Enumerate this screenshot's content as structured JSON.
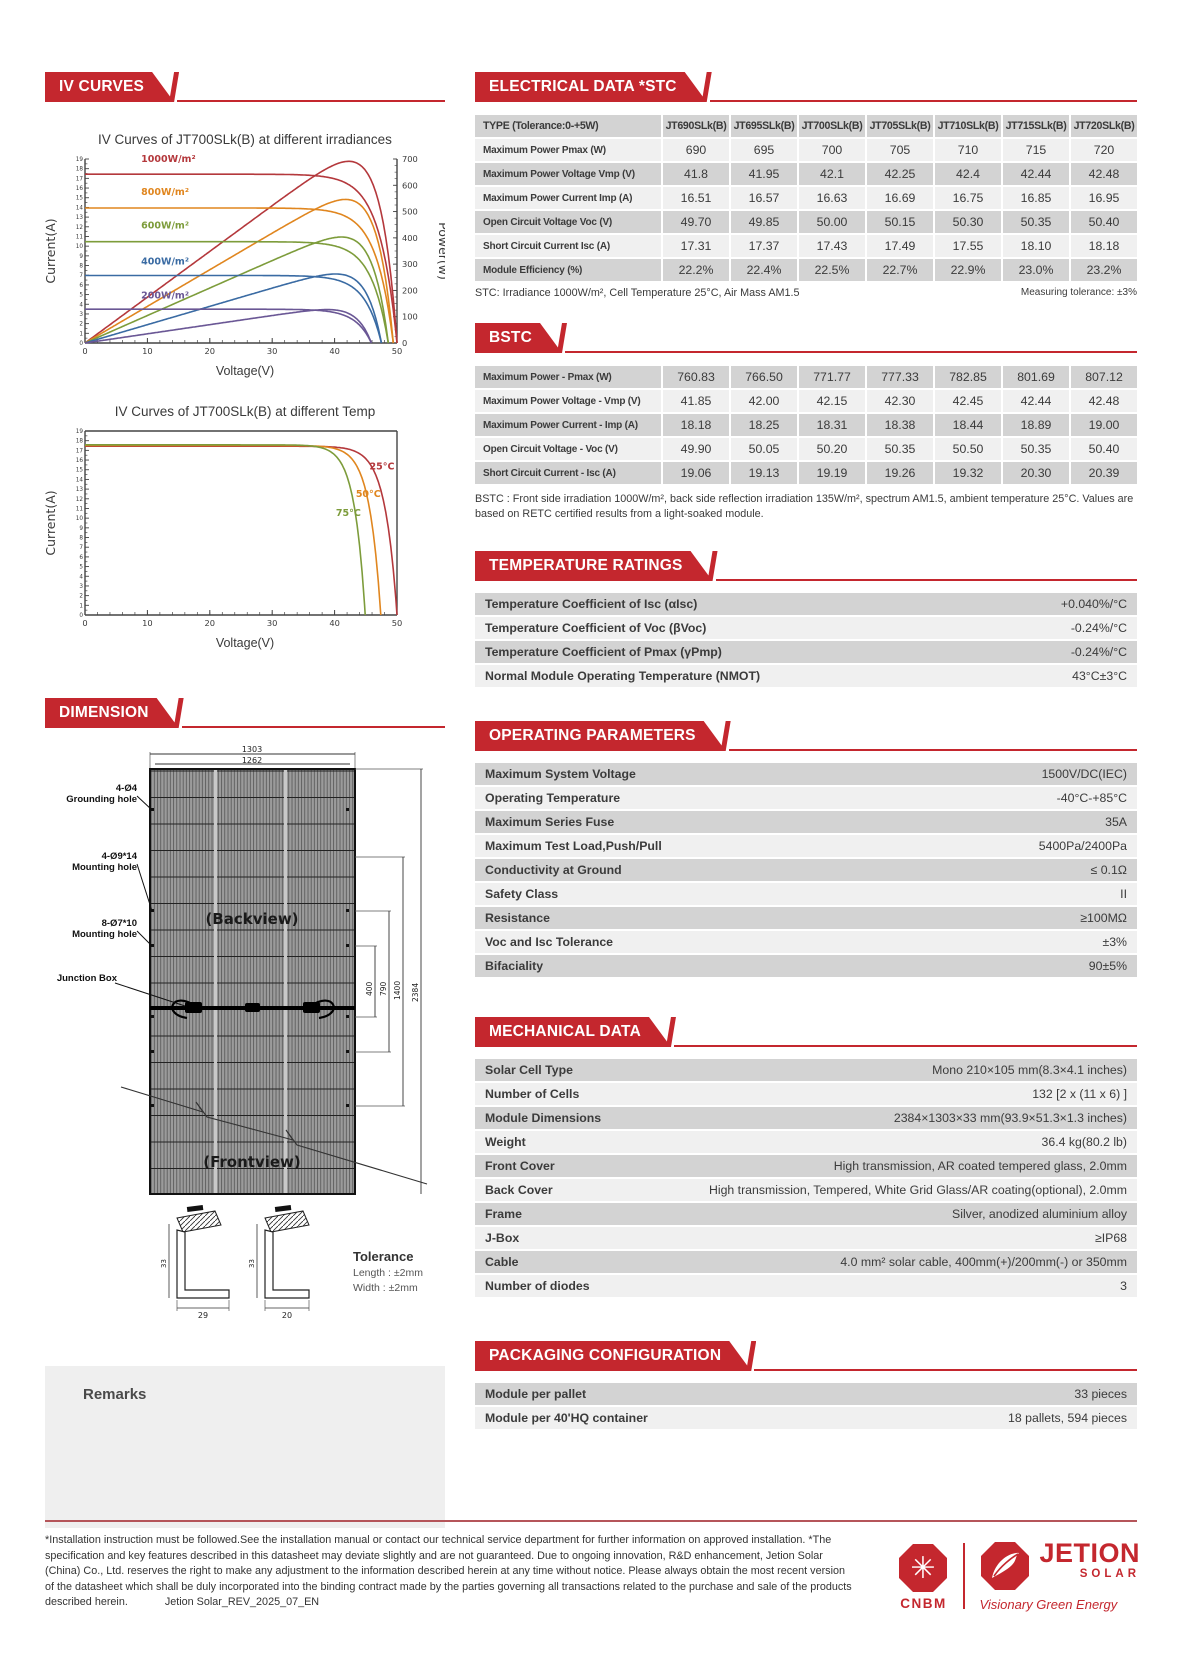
{
  "left": {
    "iv_banner": "IV CURVES",
    "dimension_banner": "DIMENSION",
    "remarks_label": "Remarks",
    "dimension": {
      "grounding_hole": "4-Ø4\nGrounding hole",
      "mounting_hole_1": "4-Ø9*14\nMounting hole",
      "mounting_hole_2": "8-Ø7*10\nMounting hole",
      "junction_box": "Junction Box",
      "backview": "(Backview)",
      "frontview": "(Frontview)",
      "dims": {
        "width_outer": "1303",
        "width_inner": "1262",
        "h400": "400",
        "h790": "790",
        "h1400": "1400",
        "h2384": "2384",
        "frame_h1": "33",
        "frame_h2": "33",
        "frame_w1": "29",
        "frame_w2": "20"
      },
      "tolerance": {
        "title": "Tolerance",
        "length": "Length :  ±2mm",
        "width": "Width :  ±2mm"
      }
    }
  },
  "chart_data": [
    {
      "type": "line",
      "title": "IV Curves of JT700SLk(B) at different irradiances",
      "xlabel": "Voltage(V)",
      "ylabel": "Current(A)",
      "y2label": "Power(w)",
      "xlim": [
        0,
        50
      ],
      "ylim": [
        0,
        19
      ],
      "y2lim": [
        0,
        700
      ],
      "grid": false,
      "legend_position": "in-plot-left",
      "series": [
        {
          "name": "1000W/m²",
          "color": "#b4383c",
          "isc": 17.43,
          "voc": 50.0,
          "vmp": 42.1,
          "imp": 16.63,
          "pmax": 700,
          "label_at": [
            9,
            18.7
          ]
        },
        {
          "name": "800W/m²",
          "color": "#e0861f",
          "isc": 13.94,
          "voc": 49.4,
          "vmp": 41.9,
          "imp": 13.3,
          "pmax": 557,
          "label_at": [
            9,
            15.3
          ]
        },
        {
          "name": "600W/m²",
          "color": "#7d9c3b",
          "isc": 10.46,
          "voc": 48.6,
          "vmp": 41.5,
          "imp": 10.0,
          "pmax": 415,
          "label_at": [
            9,
            11.8
          ]
        },
        {
          "name": "400W/m²",
          "color": "#3a6ba3",
          "isc": 6.97,
          "voc": 47.5,
          "vmp": 41.0,
          "imp": 6.65,
          "pmax": 273,
          "label_at": [
            9,
            8.1
          ]
        },
        {
          "name": "200W/m²",
          "color": "#6a5795",
          "isc": 3.49,
          "voc": 45.9,
          "vmp": 40.2,
          "imp": 3.3,
          "pmax": 133,
          "label_at": [
            9,
            4.6
          ]
        }
      ]
    },
    {
      "type": "line",
      "title": "IV Curves of JT700SLk(B) at different Temp",
      "xlabel": "Voltage(V)",
      "ylabel": "Current(A)",
      "xlim": [
        0,
        50
      ],
      "ylim": [
        0,
        19
      ],
      "grid": false,
      "legend_position": "in-plot-right",
      "series": [
        {
          "name": "25°C",
          "color": "#b4383c",
          "isc": 17.43,
          "voc": 50.0,
          "label_at": [
            45.6,
            15.0
          ]
        },
        {
          "name": "50°C",
          "color": "#e0861f",
          "isc": 17.5,
          "voc": 47.4,
          "label_at": [
            43.4,
            12.2
          ]
        },
        {
          "name": "75°C",
          "color": "#7d9c3b",
          "isc": 17.57,
          "voc": 44.9,
          "label_at": [
            40.2,
            10.2
          ]
        }
      ]
    }
  ],
  "right": {
    "stc": {
      "banner": "ELECTRICAL DATA *STC",
      "columns": [
        "TYPE (Tolerance:0-+5W)",
        "JT690SLk(B)",
        "JT695SLk(B)",
        "JT700SLk(B)",
        "JT705SLk(B)",
        "JT710SLk(B)",
        "JT715SLk(B)",
        "JT720SLk(B)"
      ],
      "rows": [
        {
          "label": "Maximum Power Pmax (W)",
          "values": [
            "690",
            "695",
            "700",
            "705",
            "710",
            "715",
            "720"
          ]
        },
        {
          "label": "Maximum Power Voltage Vmp (V)",
          "values": [
            "41.8",
            "41.95",
            "42.1",
            "42.25",
            "42.4",
            "42.44",
            "42.48"
          ]
        },
        {
          "label": "Maximum Power Current Imp (A)",
          "values": [
            "16.51",
            "16.57",
            "16.63",
            "16.69",
            "16.75",
            "16.85",
            "16.95"
          ]
        },
        {
          "label": "Open Circuit Voltage Voc (V)",
          "values": [
            "49.70",
            "49.85",
            "50.00",
            "50.15",
            "50.30",
            "50.35",
            "50.40"
          ]
        },
        {
          "label": "Short Circuit Current Isc (A)",
          "values": [
            "17.31",
            "17.37",
            "17.43",
            "17.49",
            "17.55",
            "18.10",
            "18.18"
          ]
        },
        {
          "label": "Module Efficiency (%)",
          "values": [
            "22.2%",
            "22.4%",
            "22.5%",
            "22.7%",
            "22.9%",
            "23.0%",
            "23.2%"
          ]
        }
      ],
      "note_left": "STC: Irradiance 1000W/m², Cell Temperature 25°C, Air Mass AM1.5",
      "note_right": "Measuring tolerance: ±3%"
    },
    "bstc": {
      "banner": "BSTC",
      "rows": [
        {
          "label": "Maximum Power - Pmax (W)",
          "values": [
            "760.83",
            "766.50",
            "771.77",
            "777.33",
            "782.85",
            "801.69",
            "807.12"
          ]
        },
        {
          "label": "Maximum Power Voltage - Vmp (V)",
          "values": [
            "41.85",
            "42.00",
            "42.15",
            "42.30",
            "42.45",
            "42.44",
            "42.48"
          ]
        },
        {
          "label": "Maximum Power Current - Imp (A)",
          "values": [
            "18.18",
            "18.25",
            "18.31",
            "18.38",
            "18.44",
            "18.89",
            "19.00"
          ]
        },
        {
          "label": "Open Circuit Voltage - Voc (V)",
          "values": [
            "49.90",
            "50.05",
            "50.20",
            "50.35",
            "50.50",
            "50.35",
            "50.40"
          ]
        },
        {
          "label": "Short Circuit Current - Isc (A)",
          "values": [
            "19.06",
            "19.13",
            "19.19",
            "19.26",
            "19.32",
            "20.30",
            "20.39"
          ]
        }
      ],
      "note": "BSTC : Front side irradiation 1000W/m², back side reflection irradiation 135W/m², spectrum AM1.5, ambient temperature 25°C. Values are based on RETC certified results from a light-soaked module."
    },
    "temperature": {
      "banner": "TEMPERATURE RATINGS",
      "rows": [
        {
          "label": "Temperature Coefficient of Isc  (αIsc)",
          "value": "+0.040%/°C"
        },
        {
          "label": "Temperature Coefficient of Voc  (βVoc)",
          "value": "-0.24%/°C"
        },
        {
          "label": "Temperature Coefficient of Pmax  (γPmp)",
          "value": "-0.24%/°C"
        },
        {
          "label": "Normal Module Operating Temperature  (NMOT)",
          "value": "43°C±3°C"
        }
      ]
    },
    "operating": {
      "banner": "OPERATING PARAMETERS",
      "rows": [
        {
          "label": "Maximum System Voltage",
          "value": "1500V/DC(IEC)"
        },
        {
          "label": "Operating Temperature",
          "value": "-40°C-+85°C"
        },
        {
          "label": "Maximum Series Fuse",
          "value": "35A"
        },
        {
          "label": "Maximum Test Load,Push/Pull",
          "value": "5400Pa/2400Pa"
        },
        {
          "label": "Conductivity at Ground",
          "value": "≤ 0.1Ω"
        },
        {
          "label": "Safety Class",
          "value": "II"
        },
        {
          "label": "Resistance",
          "value": "≥100MΩ"
        },
        {
          "label": "Voc and Isc Tolerance",
          "value": "±3%"
        },
        {
          "label": "Bifaciality",
          "value": "90±5%"
        }
      ]
    },
    "mechanical": {
      "banner": "MECHANICAL DATA",
      "rows": [
        {
          "label": "Solar Cell Type",
          "value": "Mono 210×105 mm(8.3×4.1 inches)"
        },
        {
          "label": "Number of Cells",
          "value": "132 [2 x (11 x 6) ]"
        },
        {
          "label": "Module Dimensions",
          "value": "2384×1303×33 mm(93.9×51.3×1.3 inches)"
        },
        {
          "label": "Weight",
          "value": "36.4 kg(80.2 lb)"
        },
        {
          "label": "Front Cover",
          "value": "High transmission, AR coated tempered glass, 2.0mm"
        },
        {
          "label": "Back Cover",
          "value": "High transmission, Tempered, White Grid Glass/AR coating(optional), 2.0mm"
        },
        {
          "label": "Frame",
          "value": "Silver, anodized aluminium alloy"
        },
        {
          "label": "J-Box",
          "value": "≥IP68"
        },
        {
          "label": "Cable",
          "value": "4.0 mm² solar cable, 400mm(+)/200mm(-) or 350mm"
        },
        {
          "label": "Number of diodes",
          "value": "3"
        }
      ]
    },
    "packaging": {
      "banner": "PACKAGING CONFIGURATION",
      "rows": [
        {
          "label": "Module per pallet",
          "value": "33 pieces"
        },
        {
          "label": "Module per 40'HQ container",
          "value": "18 pallets, 594 pieces"
        }
      ]
    }
  },
  "footer": {
    "disclaimer": "*Installation instruction must be followed.See the installation manual or contact our technical service department for further information on approved installation. *The specification and key features described in this datasheet may deviate slightly and are not guaranteed. Due to ongoing innovation, R&D enhancement, Jetion Solar (China) Co., Ltd. reserves the right to make any adjustment to the information described herein at any time without notice. Please always obtain the most recent version of the datasheet which shall be duly incorporated into the binding contract made by the parties governing all transactions related to the purchase and sale of the products described herein.",
    "version": "Jetion Solar_REV_2025_07_EN",
    "cnbm": "CNBM",
    "jetion_word": "JETION",
    "jetion_solar": "SOLAR",
    "jetion_tagline": "Visionary Green Energy"
  }
}
